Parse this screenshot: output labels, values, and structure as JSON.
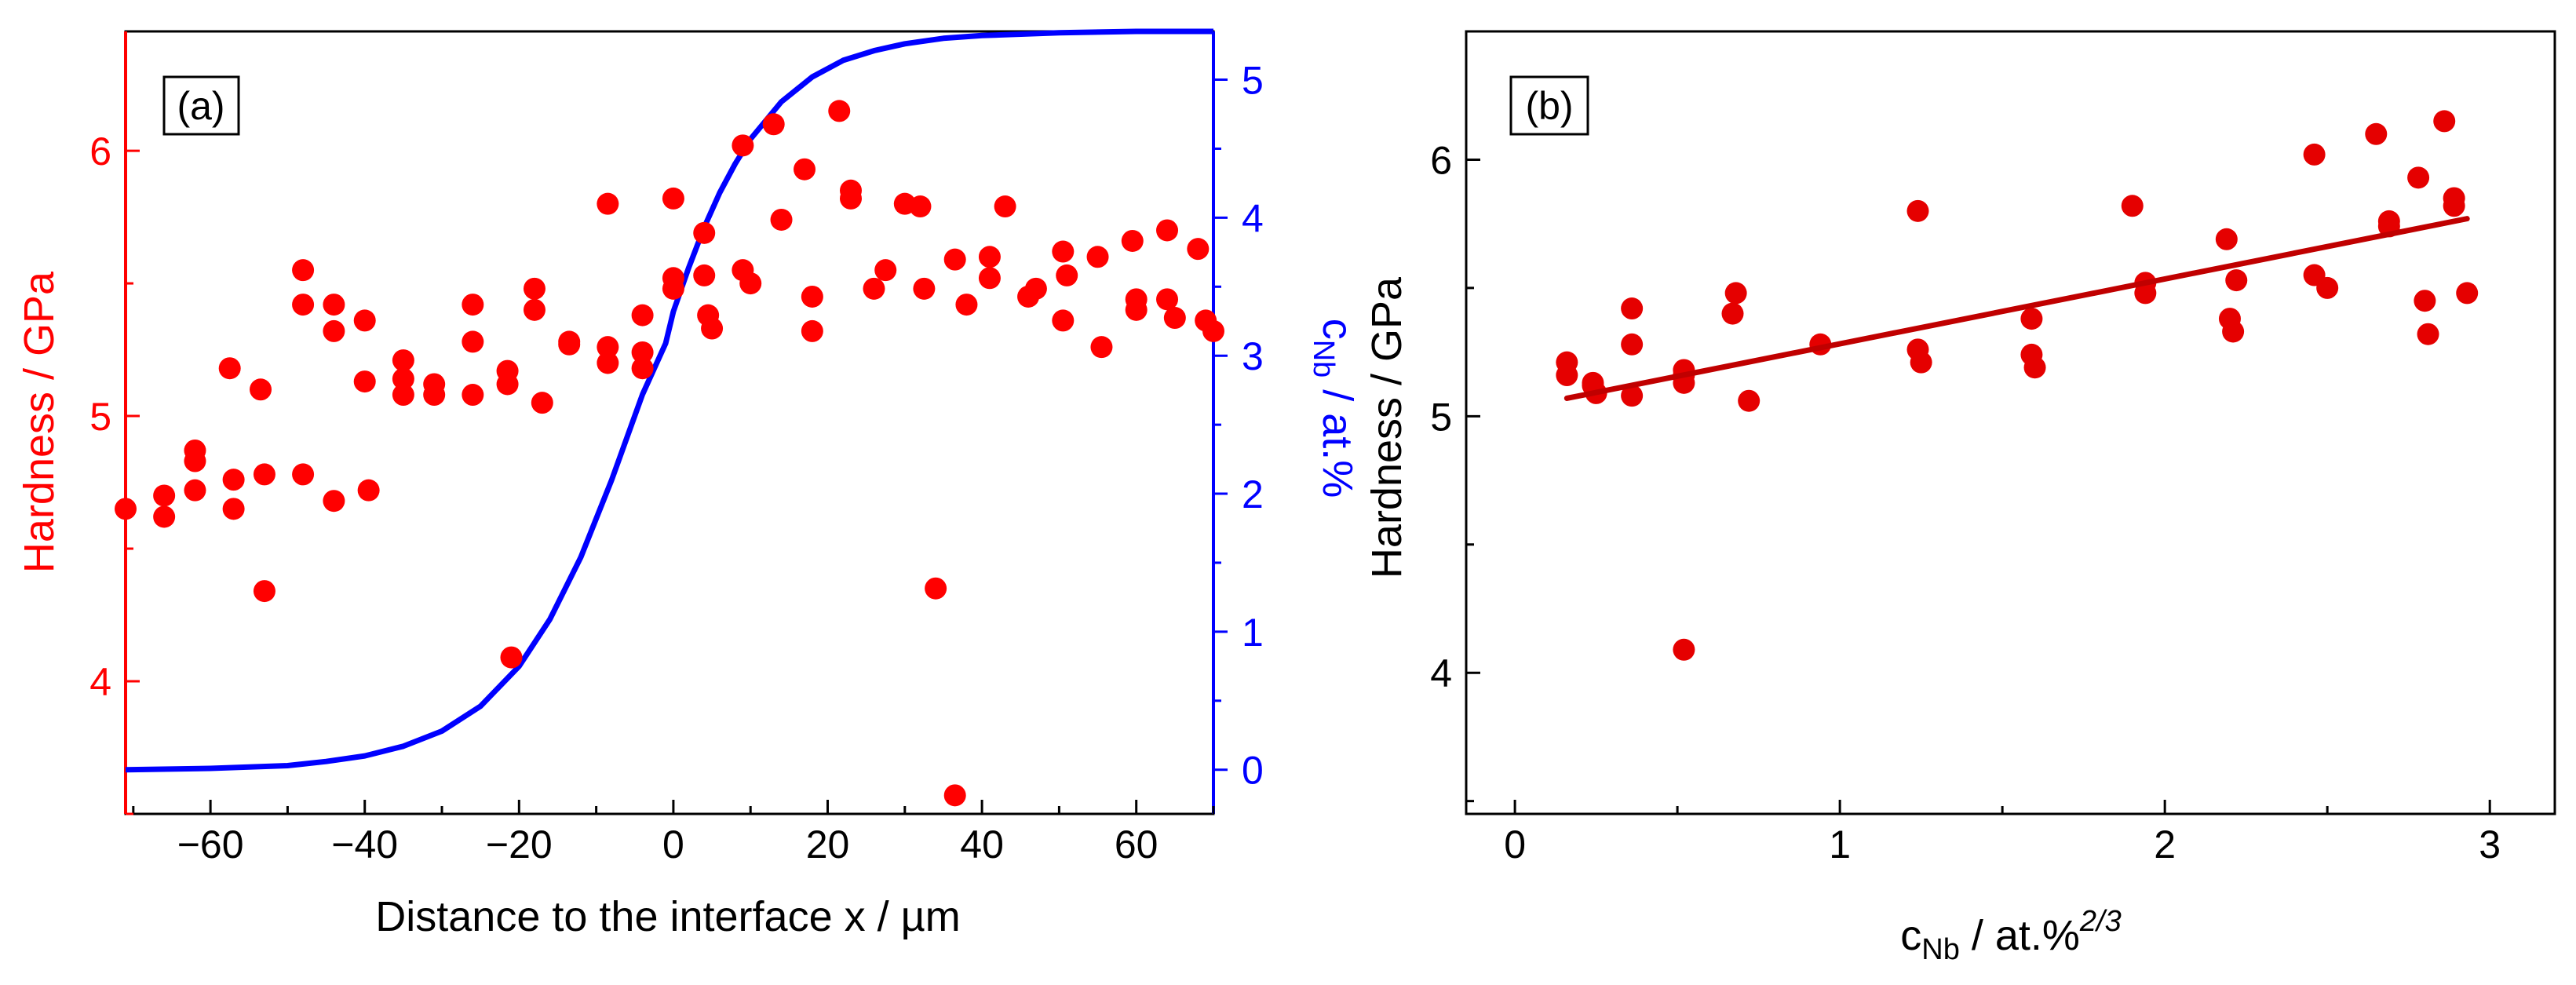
{
  "chart_data": [
    {
      "id": "a",
      "type": "scatter",
      "panel_label": "(a)",
      "xlabel": "Distance to the interface x / µm",
      "ylabel": "Hardness / GPa",
      "ylabel_color": "#ff0000",
      "y2label_main": "c",
      "y2label_sub": "Nb",
      "y2label_rest": " / at.%",
      "y2label_color": "#0000ff",
      "xlim": [
        -71,
        70
      ],
      "ylim": [
        3.5,
        6.45
      ],
      "y2lim": [
        -0.32,
        5.35
      ],
      "xticks": [
        -60,
        -40,
        -20,
        0,
        20,
        40,
        60
      ],
      "xtick_labels": [
        "−60",
        "−40",
        "−20",
        "0",
        "20",
        "40",
        "60"
      ],
      "yticks": [
        4,
        5,
        6
      ],
      "ytick_labels": [
        "4",
        "5",
        "6"
      ],
      "y2ticks": [
        0,
        1,
        2,
        3,
        4,
        5
      ],
      "y2tick_labels": [
        "0",
        "1",
        "2",
        "3",
        "4",
        "5"
      ],
      "series": [
        {
          "name": "Hardness",
          "color": "#ff0000",
          "axis": "left",
          "kind": "scatter",
          "x": [
            -71,
            -66,
            -66,
            -62,
            -62,
            -62,
            -57.5,
            -57,
            -57,
            -53.5,
            -53,
            -53,
            -48,
            -48,
            -48,
            -44,
            -44,
            -44,
            -40,
            -40,
            -39.5,
            -35,
            -35,
            -35,
            -31,
            -31,
            -26,
            -26,
            -26,
            -21.5,
            -21.5,
            -21,
            -18,
            -18,
            -17,
            -13.5,
            -13.5,
            -8.5,
            -8.5,
            -8.5,
            -4,
            -4,
            -4,
            0,
            0,
            0,
            4,
            4,
            4.5,
            5,
            9,
            9,
            10,
            13,
            14,
            17,
            18,
            18,
            21.5,
            23,
            23,
            26,
            27.5,
            30,
            32,
            32.5,
            34,
            36.5,
            36.5,
            38,
            41,
            41,
            43,
            46,
            47,
            50.5,
            50.5,
            51,
            55,
            55.5,
            59.5,
            60,
            60,
            64,
            64,
            65,
            68,
            69,
            70
          ],
          "y": [
            4.65,
            4.7,
            4.62,
            4.87,
            4.83,
            4.72,
            5.18,
            4.76,
            4.65,
            5.1,
            4.78,
            4.34,
            5.55,
            5.42,
            4.78,
            5.42,
            5.32,
            4.68,
            5.36,
            5.13,
            4.72,
            5.21,
            5.14,
            5.08,
            5.12,
            5.08,
            5.42,
            5.28,
            5.08,
            5.17,
            5.12,
            4.09,
            5.48,
            5.4,
            5.05,
            5.28,
            5.27,
            5.8,
            5.26,
            5.2,
            5.38,
            5.24,
            5.18,
            5.82,
            5.52,
            5.48,
            5.69,
            5.53,
            5.38,
            5.33,
            6.02,
            5.55,
            5.5,
            6.1,
            5.74,
            5.93,
            5.45,
            5.32,
            6.15,
            5.85,
            5.82,
            5.48,
            5.55,
            5.8,
            5.79,
            5.48,
            4.35,
            5.59,
            3.57,
            5.42,
            5.6,
            5.52,
            5.79,
            5.45,
            5.48,
            5.62,
            5.36,
            5.53,
            5.6,
            5.26,
            5.66,
            5.44,
            5.4,
            5.7,
            5.44,
            5.37,
            5.63,
            5.36,
            5.32
          ]
        },
        {
          "name": "c_Nb profile",
          "color": "#0000ff",
          "axis": "right",
          "kind": "line",
          "x": [
            -71,
            -60,
            -50,
            -45,
            -40,
            -35,
            -30,
            -25,
            -20,
            -16,
            -12,
            -8,
            -4,
            -1,
            0,
            2,
            4,
            6,
            8,
            10,
            14,
            18,
            22,
            26,
            30,
            35,
            40,
            50,
            60,
            70
          ],
          "y": [
            0,
            0.01,
            0.03,
            0.06,
            0.1,
            0.17,
            0.28,
            0.46,
            0.75,
            1.09,
            1.54,
            2.1,
            2.72,
            3.09,
            3.32,
            3.64,
            3.93,
            4.18,
            4.39,
            4.57,
            4.84,
            5.02,
            5.14,
            5.21,
            5.26,
            5.3,
            5.32,
            5.34,
            5.35,
            5.35
          ]
        }
      ]
    },
    {
      "id": "b",
      "type": "scatter",
      "panel_label": "(b)",
      "xlabel_main": "c",
      "xlabel_sub": "Nb",
      "xlabel_rest": " / at.%",
      "xlabel_sup": "2/3",
      "ylabel": "Hardness / GPa",
      "xlim": [
        -0.15,
        3.2
      ],
      "ylim": [
        3.45,
        6.5
      ],
      "xticks": [
        0,
        1,
        2,
        3
      ],
      "xtick_labels": [
        "0",
        "1",
        "2",
        "3"
      ],
      "yticks": [
        4,
        5,
        6
      ],
      "ytick_labels": [
        "4",
        "5",
        "6"
      ],
      "series": [
        {
          "name": "Hardness",
          "color": "#e50000",
          "kind": "scatter",
          "x": [
            0.16,
            0.16,
            0.24,
            0.24,
            0.25,
            0.36,
            0.36,
            0.36,
            0.52,
            0.52,
            0.52,
            0.52,
            0.67,
            0.68,
            0.72,
            0.94,
            1.24,
            1.24,
            1.25,
            1.59,
            1.59,
            1.6,
            1.9,
            1.94,
            1.94,
            2.19,
            2.2,
            2.21,
            2.22,
            2.46,
            2.46,
            2.5,
            2.65,
            2.69,
            2.69,
            2.78,
            2.8,
            2.81,
            2.86,
            2.89,
            2.89,
            2.93
          ],
          "y": [
            5.21,
            5.16,
            5.13,
            5.12,
            5.09,
            5.42,
            5.28,
            5.08,
            5.18,
            5.16,
            5.13,
            4.09,
            5.4,
            5.48,
            5.06,
            5.28,
            5.8,
            5.26,
            5.21,
            5.38,
            5.24,
            5.19,
            5.82,
            5.52,
            5.48,
            5.69,
            5.38,
            5.33,
            5.53,
            6.02,
            5.55,
            5.5,
            6.1,
            5.76,
            5.74,
            5.93,
            5.45,
            5.32,
            6.15,
            5.85,
            5.82,
            5.48
          ]
        },
        {
          "name": "Linear fit",
          "color": "#c00000",
          "kind": "line",
          "x": [
            0.16,
            2.93
          ],
          "y": [
            5.07,
            5.77
          ]
        }
      ]
    }
  ]
}
